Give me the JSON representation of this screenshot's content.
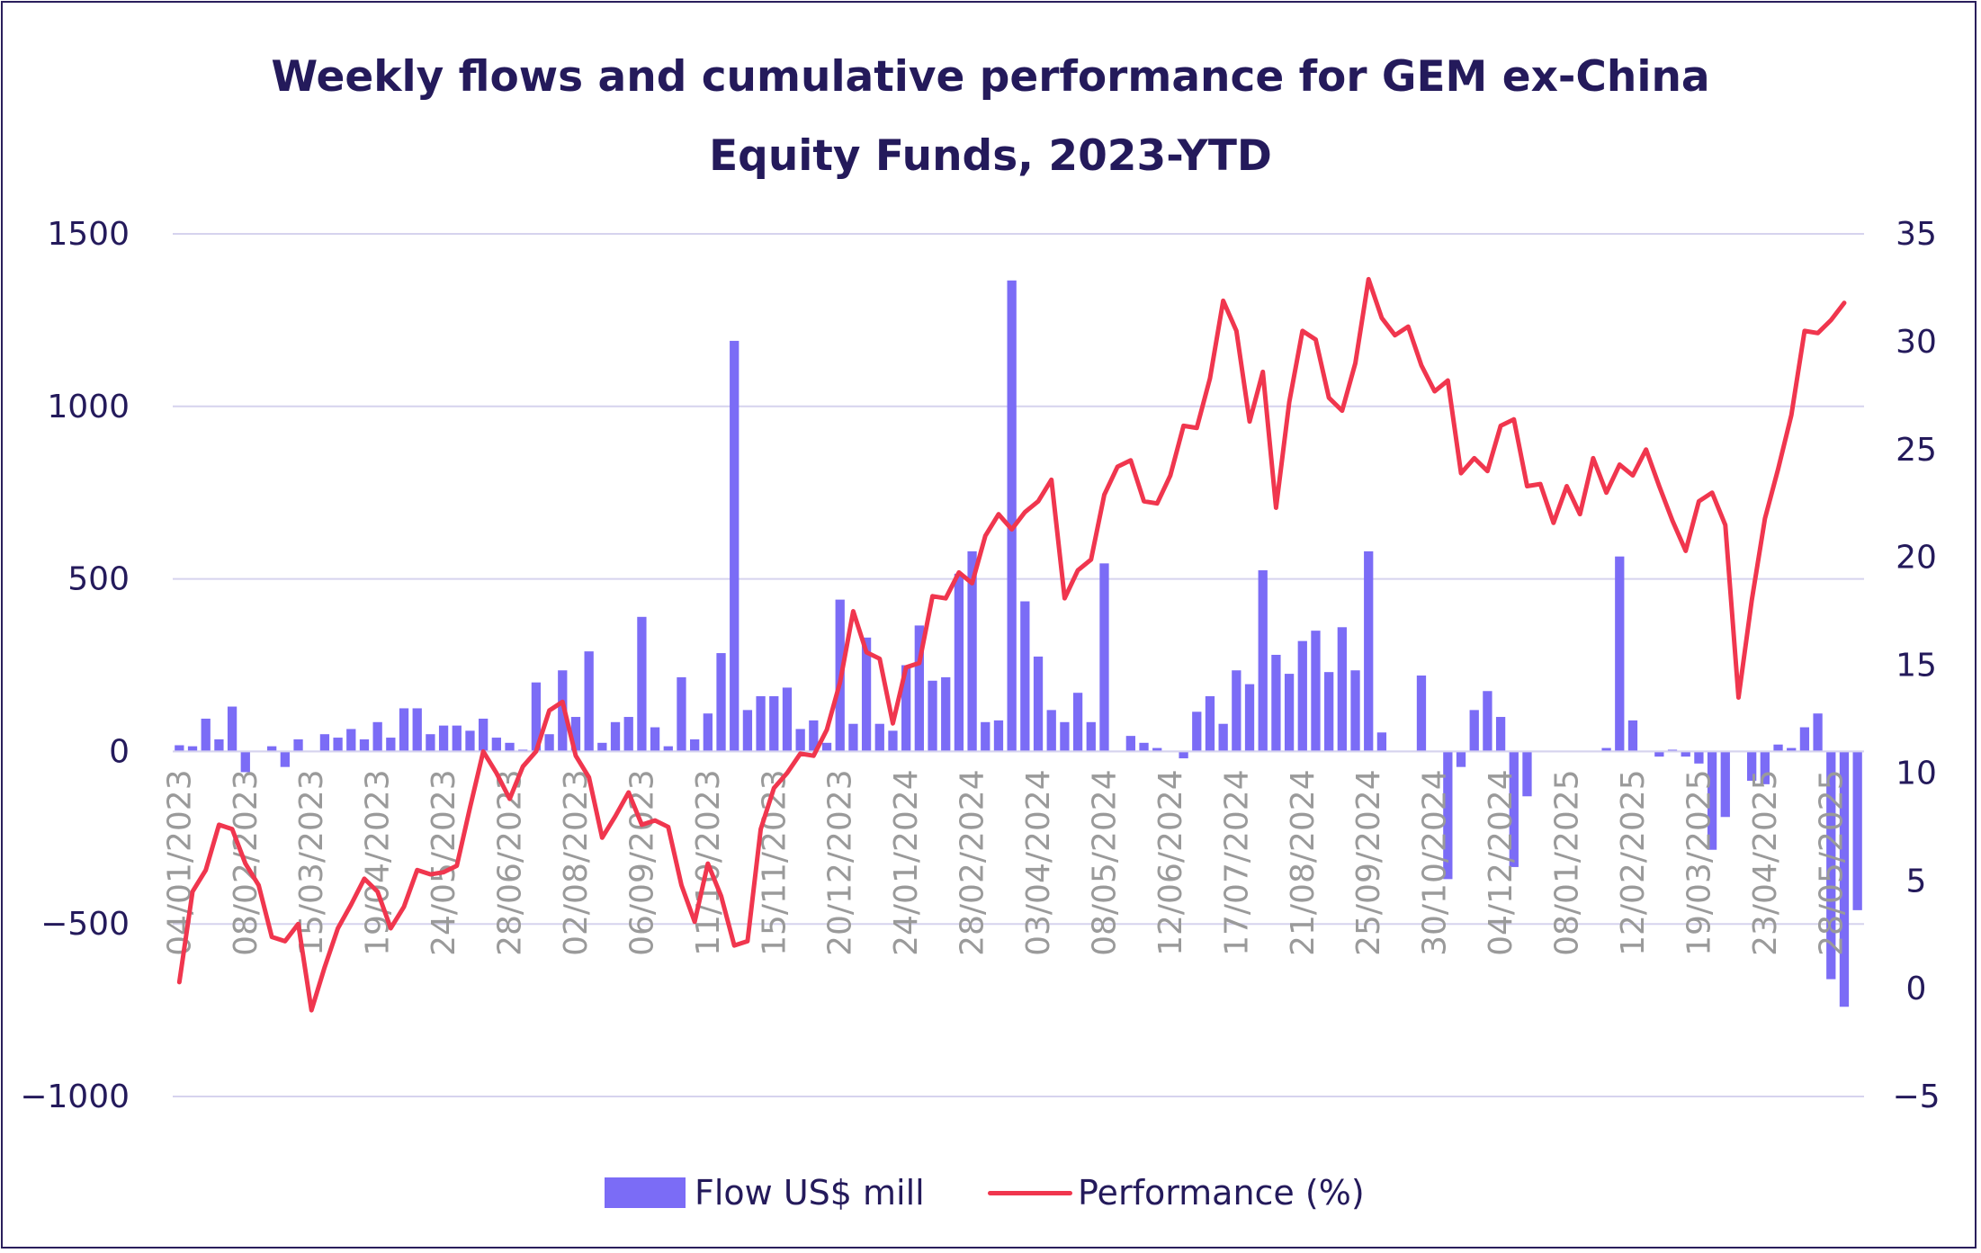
{
  "chart_data": {
    "type": "bar+line",
    "title": "Weekly flows and cumulative performance for GEM ex-China Equity Funds, 2023-YTD",
    "title_lines": [
      "Weekly flows and cumulative performance for GEM ex-China",
      "Equity Funds, 2023-YTD"
    ],
    "y_left": {
      "min": -1000,
      "max": 1500,
      "ticks": [
        "1500",
        "1000",
        "500",
        "0",
        "-500",
        "-1000"
      ]
    },
    "y_right": {
      "min": -5,
      "max": 35,
      "ticks": [
        "35",
        "30",
        "25",
        "20",
        "15",
        "10",
        "5",
        "0",
        "-5"
      ]
    },
    "x_tick_labels": [
      "04/01/2023",
      "08/02/2023",
      "15/03/2023",
      "19/04/2023",
      "24/05/2023",
      "28/06/2023",
      "02/08/2023",
      "06/09/2023",
      "11/10/2023",
      "15/11/2023",
      "20/12/2023",
      "24/01/2024",
      "28/02/2024",
      "03/04/2024",
      "08/05/2024",
      "12/06/2024",
      "17/07/2024",
      "21/08/2024",
      "25/09/2024",
      "30/10/2024",
      "04/12/2024",
      "08/01/2025",
      "12/02/2025",
      "19/03/2025",
      "23/04/2025",
      "28/05/2025"
    ],
    "x_tick_week_index": [
      0,
      5,
      10,
      15,
      20,
      25,
      30,
      35,
      40,
      45,
      50,
      55,
      60,
      65,
      70,
      75,
      80,
      85,
      90,
      95,
      100,
      105,
      110,
      115,
      120,
      125
    ],
    "grid": "horizontal",
    "legend_position": "bottom",
    "series": [
      {
        "name": "Flow US$ mill",
        "type": "bar",
        "axis": "left",
        "color": "#7B6CF6",
        "values": [
          18,
          15,
          95,
          35,
          130,
          -60,
          0,
          15,
          -45,
          35,
          0,
          50,
          40,
          65,
          35,
          85,
          40,
          125,
          125,
          50,
          75,
          75,
          60,
          95,
          40,
          25,
          5,
          200,
          50,
          235,
          100,
          290,
          25,
          85,
          100,
          390,
          70,
          15,
          215,
          35,
          110,
          285,
          1190,
          120,
          160,
          160,
          185,
          65,
          90,
          25,
          440,
          80,
          330,
          80,
          60,
          250,
          365,
          205,
          215,
          515,
          580,
          85,
          90,
          1365,
          435,
          275,
          120,
          85,
          170,
          85,
          545,
          0,
          45,
          25,
          10,
          0,
          -20,
          115,
          160,
          80,
          235,
          195,
          525,
          280,
          225,
          320,
          350,
          230,
          360,
          235,
          580,
          55,
          0,
          0,
          220,
          0,
          -370,
          -45,
          120,
          175,
          100,
          -335,
          -130,
          0,
          0,
          0,
          0,
          0,
          10,
          565,
          90,
          0,
          -15,
          5,
          -15,
          -35,
          -285,
          -190,
          0,
          -85,
          -95,
          20,
          10,
          70,
          110,
          -660,
          -740,
          -460
        ]
      },
      {
        "name": "Performance (%)",
        "type": "line",
        "axis": "right",
        "color": "#F0364E",
        "values": [
          0.3,
          4.5,
          5.5,
          7.6,
          7.4,
          5.8,
          4.8,
          2.4,
          2.2,
          3,
          -1,
          1,
          2.8,
          3.9,
          5.1,
          4.5,
          2.8,
          3.8,
          5.5,
          5.3,
          5.4,
          5.7,
          8.4,
          11,
          10,
          8.8,
          10.3,
          11,
          12.9,
          13.3,
          10.8,
          9.8,
          7,
          8,
          9.1,
          7.6,
          7.8,
          7.5,
          4.8,
          3.1,
          5.8,
          4.3,
          2,
          2.2,
          7.4,
          9.3,
          10,
          10.9,
          10.8,
          12,
          14.2,
          17.5,
          15.6,
          15.3,
          12.3,
          14.9,
          15.1,
          18.2,
          18.1,
          19.3,
          18.8,
          21,
          22,
          21.3,
          22.1,
          22.6,
          23.6,
          18.1,
          19.4,
          19.9,
          22.9,
          24.2,
          24.5,
          22.6,
          22.5,
          23.8,
          26.1,
          26,
          28.3,
          31.9,
          30.5,
          26.3,
          28.6,
          22.3,
          27.2,
          30.5,
          30.1,
          27.4,
          26.8,
          29,
          32.9,
          31.1,
          30.3,
          30.7,
          28.9,
          27.7,
          28.2,
          23.9,
          24.6,
          24,
          26.1,
          26.4,
          23.3,
          23.4,
          21.6,
          23.3,
          22,
          24.6,
          23,
          24.3,
          23.8,
          25,
          23.3,
          21.7,
          20.3,
          22.6,
          23,
          21.5,
          13.5,
          18,
          21.8,
          24.1,
          26.6,
          30.5,
          30.4,
          31,
          31.8
        ]
      }
    ]
  }
}
